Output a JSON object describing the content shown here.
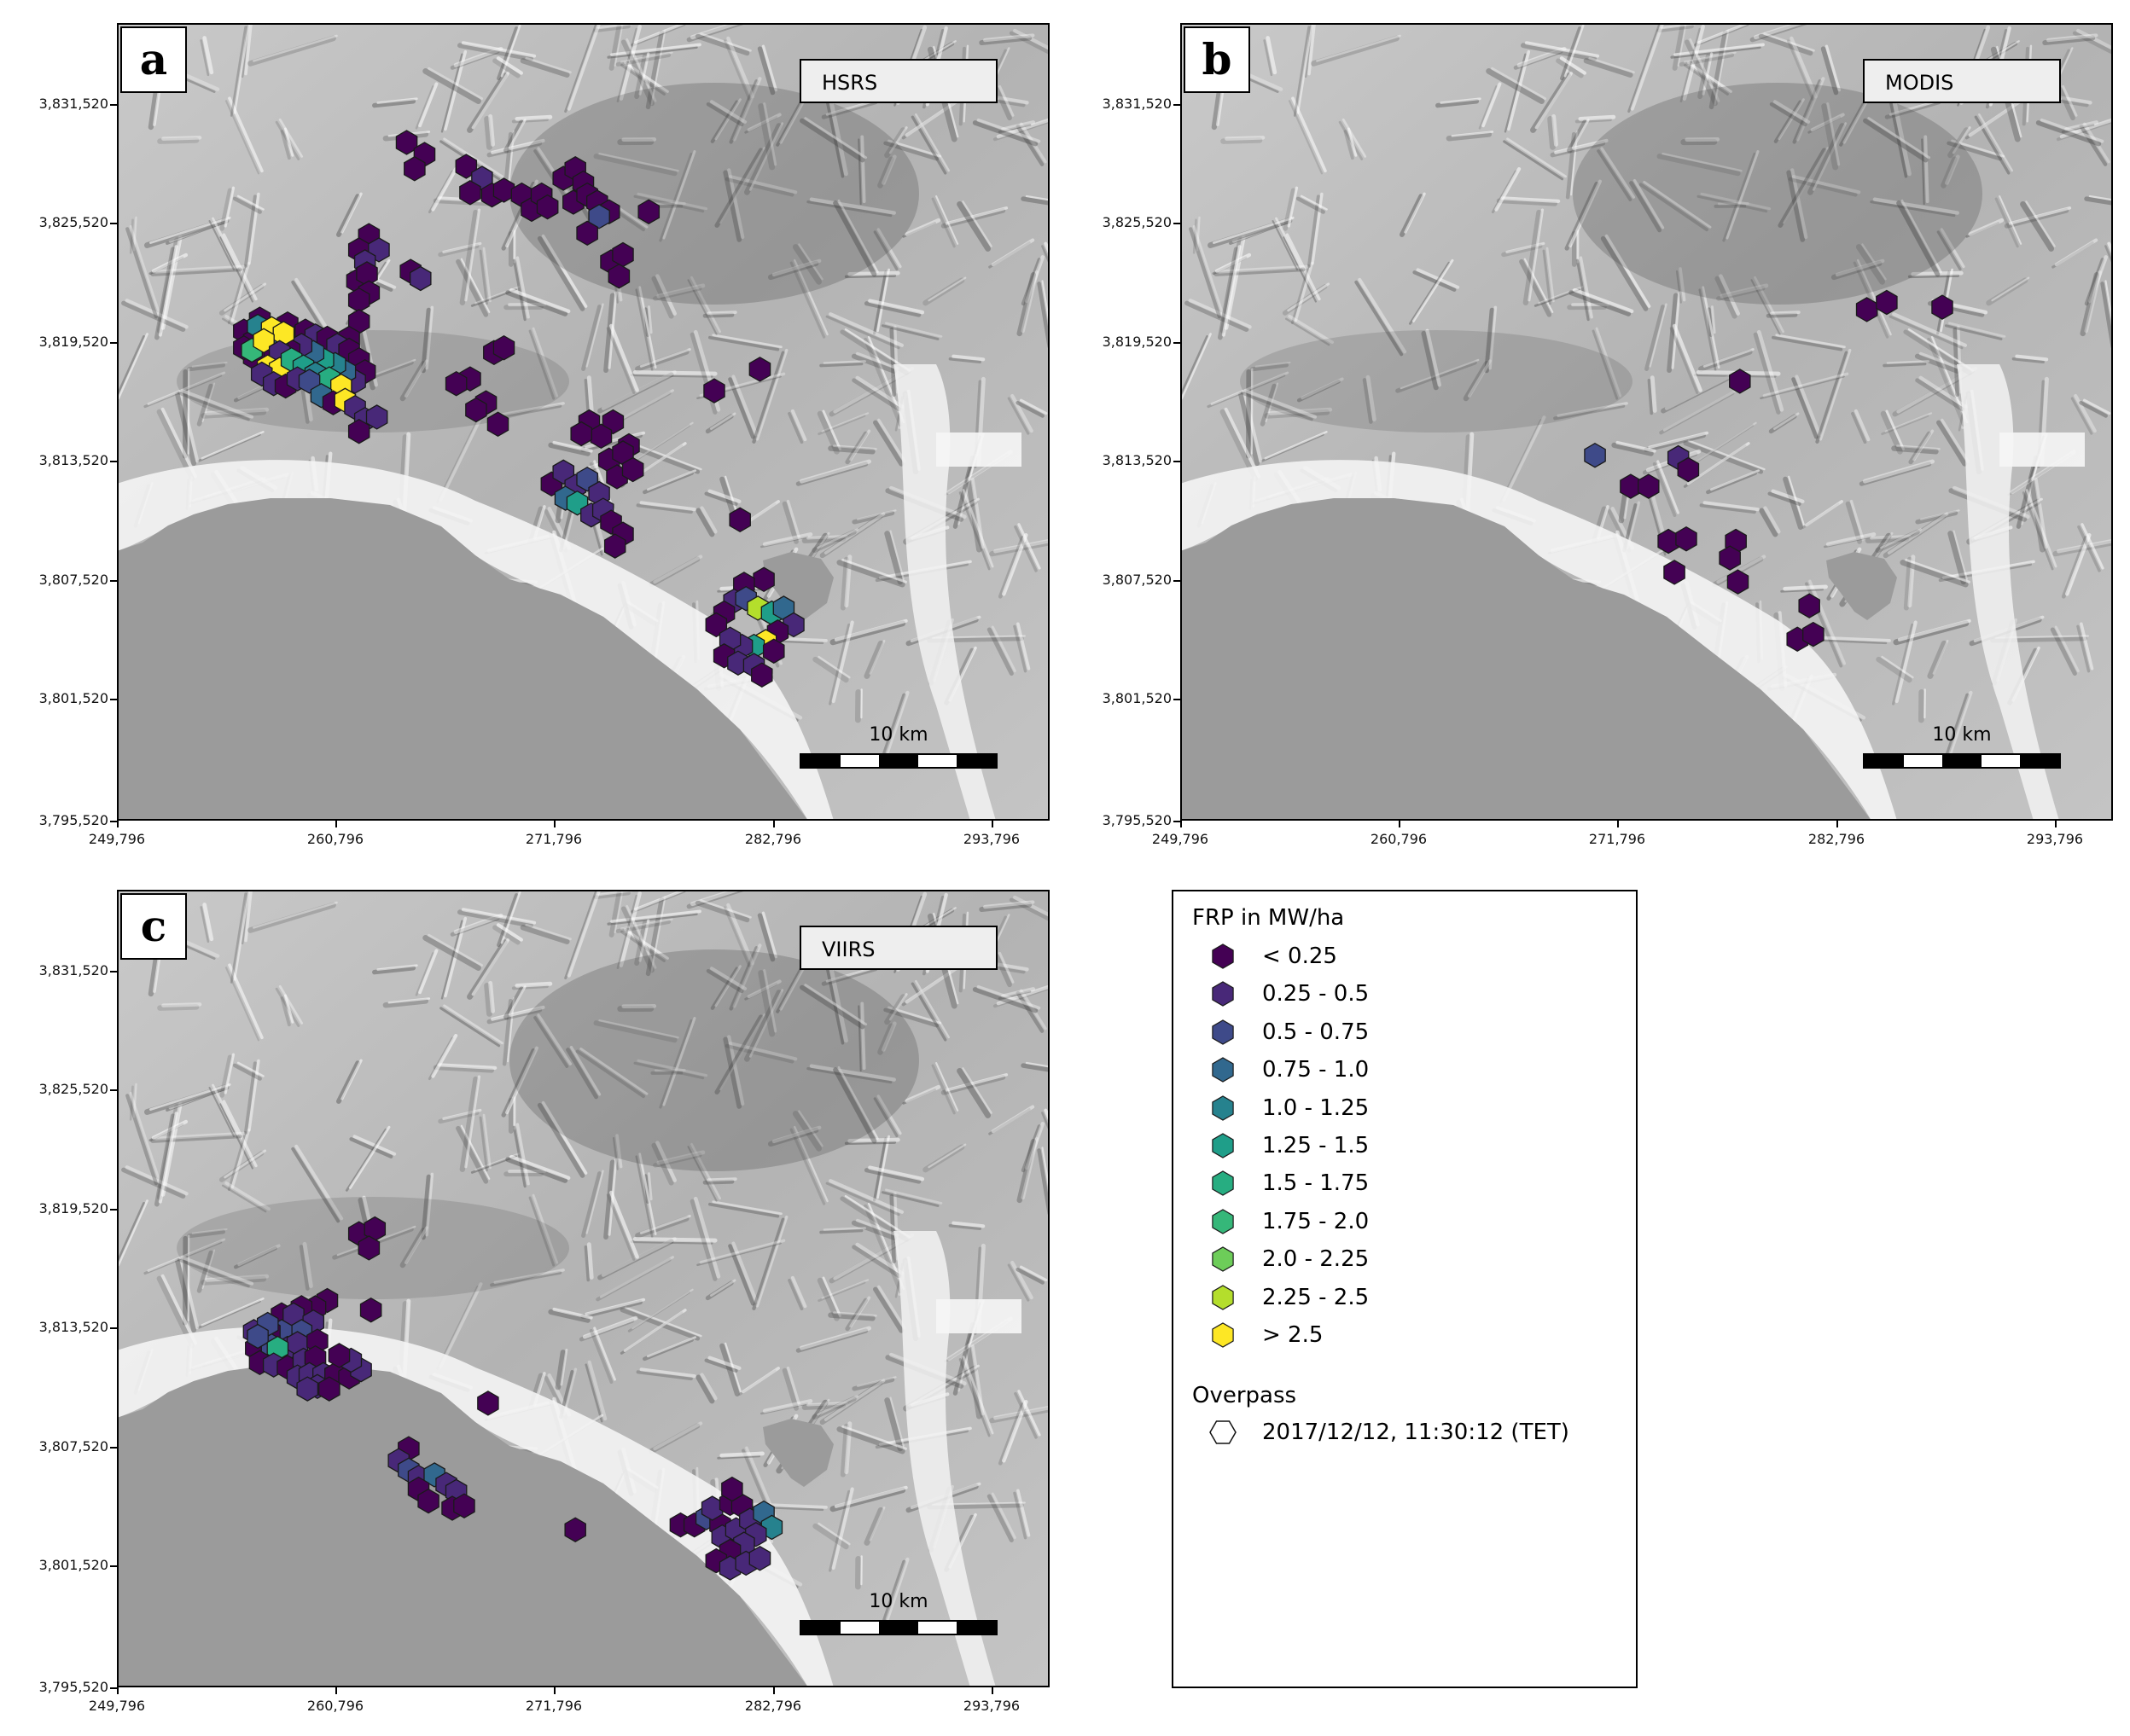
{
  "panels": [
    {
      "label": "a",
      "sensor": "HSRS",
      "hexes": [
        [
          7.3,
          2.5,
          0
        ],
        [
          7.75,
          2.75,
          0
        ],
        [
          7.5,
          3.05,
          0
        ],
        [
          8.8,
          3.0,
          0
        ],
        [
          9.2,
          3.25,
          1
        ],
        [
          8.9,
          3.55,
          0
        ],
        [
          9.45,
          3.6,
          0
        ],
        [
          9.75,
          3.5,
          0
        ],
        [
          10.2,
          3.6,
          0
        ],
        [
          10.45,
          3.9,
          0
        ],
        [
          10.7,
          3.6,
          0
        ],
        [
          10.85,
          3.85,
          0
        ],
        [
          11.25,
          3.25,
          0
        ],
        [
          11.55,
          3.05,
          0
        ],
        [
          11.75,
          3.35,
          0
        ],
        [
          11.5,
          3.75,
          0
        ],
        [
          11.85,
          3.6,
          0
        ],
        [
          12.1,
          3.75,
          0
        ],
        [
          12.4,
          3.95,
          0
        ],
        [
          12.15,
          4.05,
          2
        ],
        [
          11.85,
          4.4,
          0
        ],
        [
          13.4,
          3.95,
          0
        ],
        [
          12.45,
          5.0,
          0
        ],
        [
          12.75,
          4.85,
          0
        ],
        [
          12.65,
          5.3,
          0
        ],
        [
          7.4,
          5.2,
          0
        ],
        [
          7.65,
          5.35,
          1
        ],
        [
          6.35,
          4.45,
          0
        ],
        [
          6.1,
          4.75,
          0
        ],
        [
          6.6,
          4.75,
          1
        ],
        [
          6.25,
          5.0,
          1
        ],
        [
          6.05,
          5.4,
          0
        ],
        [
          6.3,
          5.25,
          0
        ],
        [
          6.35,
          5.65,
          0
        ],
        [
          6.1,
          5.8,
          0
        ],
        [
          6.1,
          6.25,
          0
        ],
        [
          5.85,
          6.6,
          0
        ],
        [
          3.6,
          6.2,
          0
        ],
        [
          3.2,
          6.45,
          0
        ],
        [
          3.45,
          6.65,
          0
        ],
        [
          3.75,
          6.5,
          0
        ],
        [
          4.05,
          6.55,
          1
        ],
        [
          4.3,
          6.3,
          0
        ],
        [
          4.5,
          6.6,
          1
        ],
        [
          4.75,
          6.45,
          0
        ],
        [
          5.0,
          6.55,
          1
        ],
        [
          5.3,
          6.6,
          0
        ],
        [
          5.55,
          6.75,
          1
        ],
        [
          5.85,
          6.85,
          0
        ],
        [
          6.1,
          7.05,
          0
        ],
        [
          6.25,
          7.3,
          0
        ],
        [
          6.0,
          7.5,
          1
        ],
        [
          5.75,
          7.3,
          3
        ],
        [
          5.5,
          7.15,
          4
        ],
        [
          5.2,
          7.05,
          5
        ],
        [
          4.95,
          6.9,
          3
        ],
        [
          4.65,
          6.75,
          1
        ],
        [
          4.35,
          6.85,
          0
        ],
        [
          4.05,
          6.7,
          3
        ],
        [
          3.8,
          6.9,
          0
        ],
        [
          3.45,
          7.0,
          0
        ],
        [
          3.2,
          6.8,
          0
        ],
        [
          3.55,
          6.35,
          4
        ],
        [
          3.9,
          6.4,
          10
        ],
        [
          4.2,
          6.5,
          10
        ],
        [
          3.4,
          6.85,
          7
        ],
        [
          3.7,
          6.65,
          10
        ],
        [
          4.1,
          6.9,
          1
        ],
        [
          3.8,
          7.2,
          10
        ],
        [
          4.1,
          7.25,
          10
        ],
        [
          4.4,
          7.05,
          6
        ],
        [
          4.7,
          7.2,
          5
        ],
        [
          5.0,
          7.35,
          4
        ],
        [
          5.35,
          7.45,
          6
        ],
        [
          5.65,
          7.6,
          10
        ],
        [
          3.65,
          7.35,
          1
        ],
        [
          3.95,
          7.55,
          1
        ],
        [
          4.25,
          7.6,
          0
        ],
        [
          4.55,
          7.45,
          1
        ],
        [
          4.85,
          7.5,
          2
        ],
        [
          5.15,
          7.8,
          3
        ],
        [
          5.45,
          7.95,
          0
        ],
        [
          5.75,
          7.9,
          10
        ],
        [
          6.0,
          8.05,
          1
        ],
        [
          6.25,
          8.3,
          1
        ],
        [
          6.1,
          8.55,
          0
        ],
        [
          6.55,
          8.25,
          1
        ],
        [
          9.5,
          6.9,
          0
        ],
        [
          9.75,
          6.8,
          0
        ],
        [
          8.9,
          7.45,
          0
        ],
        [
          8.55,
          7.55,
          0
        ],
        [
          9.3,
          7.95,
          0
        ],
        [
          9.05,
          8.1,
          0
        ],
        [
          9.6,
          8.4,
          0
        ],
        [
          11.9,
          8.35,
          0
        ],
        [
          12.5,
          8.35,
          0
        ],
        [
          12.2,
          8.65,
          0
        ],
        [
          11.7,
          8.6,
          0
        ],
        [
          12.9,
          8.85,
          0
        ],
        [
          15.05,
          7.7,
          0
        ],
        [
          16.2,
          7.25,
          0
        ],
        [
          12.4,
          9.15,
          0
        ],
        [
          12.75,
          9.0,
          0
        ],
        [
          12.6,
          9.5,
          0
        ],
        [
          13.0,
          9.35,
          0
        ],
        [
          10.95,
          9.65,
          0
        ],
        [
          11.25,
          9.4,
          1
        ],
        [
          11.55,
          9.7,
          1
        ],
        [
          11.85,
          9.55,
          2
        ],
        [
          12.15,
          9.85,
          1
        ],
        [
          11.3,
          9.95,
          3
        ],
        [
          11.6,
          10.05,
          5
        ],
        [
          11.95,
          10.3,
          1
        ],
        [
          12.25,
          10.2,
          1
        ],
        [
          12.45,
          10.45,
          0
        ],
        [
          12.75,
          10.7,
          0
        ],
        [
          12.55,
          10.95,
          0
        ],
        [
          15.7,
          10.4,
          0
        ],
        [
          16.3,
          11.65,
          0
        ],
        [
          15.8,
          11.75,
          0
        ],
        [
          15.55,
          12.1,
          1
        ],
        [
          15.3,
          12.35,
          0
        ],
        [
          15.1,
          12.6,
          0
        ],
        [
          15.85,
          12.05,
          2
        ],
        [
          16.15,
          12.25,
          9
        ],
        [
          16.5,
          12.35,
          5
        ],
        [
          16.8,
          12.25,
          3
        ],
        [
          17.05,
          12.6,
          1
        ],
        [
          16.65,
          12.75,
          0
        ],
        [
          16.35,
          12.95,
          10
        ],
        [
          16.05,
          13.05,
          5
        ],
        [
          15.75,
          13.05,
          1
        ],
        [
          15.45,
          12.9,
          1
        ],
        [
          15.3,
          13.25,
          0
        ],
        [
          15.65,
          13.4,
          1
        ],
        [
          16.05,
          13.45,
          1
        ],
        [
          16.55,
          13.15,
          0
        ],
        [
          16.25,
          13.65,
          0
        ]
      ]
    },
    {
      "label": "b",
      "sensor": "MODIS",
      "hexes": [
        [
          17.3,
          6.0,
          0
        ],
        [
          17.8,
          5.85,
          0
        ],
        [
          19.2,
          5.95,
          0
        ],
        [
          14.1,
          7.5,
          0
        ],
        [
          10.45,
          9.05,
          2
        ],
        [
          12.55,
          9.1,
          1
        ],
        [
          12.8,
          9.35,
          0
        ],
        [
          11.35,
          9.7,
          0
        ],
        [
          11.8,
          9.7,
          0
        ],
        [
          12.3,
          10.85,
          0
        ],
        [
          12.75,
          10.8,
          0
        ],
        [
          12.45,
          11.5,
          0
        ],
        [
          14.0,
          10.85,
          0
        ],
        [
          13.85,
          11.2,
          0
        ],
        [
          14.05,
          11.7,
          0
        ],
        [
          15.85,
          12.2,
          0
        ],
        [
          15.55,
          12.9,
          0
        ],
        [
          15.95,
          12.8,
          0
        ]
      ]
    },
    {
      "label": "c",
      "sensor": "VIIRS",
      "hexes": [
        [
          6.1,
          7.2,
          0
        ],
        [
          6.5,
          7.1,
          0
        ],
        [
          6.35,
          7.5,
          0
        ],
        [
          6.4,
          8.8,
          0
        ],
        [
          5.3,
          8.6,
          0
        ],
        [
          5.0,
          8.75,
          0
        ],
        [
          4.65,
          8.75,
          0
        ],
        [
          4.15,
          8.9,
          0
        ],
        [
          4.45,
          8.9,
          1
        ],
        [
          4.95,
          9.05,
          1
        ],
        [
          4.65,
          9.25,
          2
        ],
        [
          4.15,
          9.25,
          2
        ],
        [
          3.85,
          9.25,
          0
        ],
        [
          3.45,
          9.25,
          1
        ],
        [
          3.8,
          9.1,
          2
        ],
        [
          3.5,
          9.6,
          0
        ],
        [
          3.9,
          9.55,
          2
        ],
        [
          4.3,
          9.6,
          1
        ],
        [
          4.55,
          9.5,
          1
        ],
        [
          5.05,
          9.45,
          0
        ],
        [
          3.55,
          9.35,
          2
        ],
        [
          4.05,
          9.6,
          6
        ],
        [
          3.6,
          9.9,
          0
        ],
        [
          3.95,
          9.95,
          1
        ],
        [
          4.3,
          10.0,
          0
        ],
        [
          4.7,
          9.85,
          1
        ],
        [
          5.0,
          9.8,
          0
        ],
        [
          4.55,
          10.2,
          1
        ],
        [
          4.85,
          10.15,
          1
        ],
        [
          5.2,
          10.15,
          1
        ],
        [
          5.5,
          10.15,
          0
        ],
        [
          5.85,
          10.2,
          0
        ],
        [
          6.15,
          10.05,
          1
        ],
        [
          5.9,
          9.85,
          1
        ],
        [
          5.6,
          9.75,
          0
        ],
        [
          5.05,
          10.4,
          1
        ],
        [
          4.8,
          10.45,
          1
        ],
        [
          5.35,
          10.45,
          0
        ],
        [
          9.35,
          10.75,
          0
        ],
        [
          7.35,
          11.7,
          0
        ],
        [
          7.1,
          11.95,
          1
        ],
        [
          7.35,
          12.15,
          2
        ],
        [
          7.6,
          12.3,
          1
        ],
        [
          8.0,
          12.25,
          3
        ],
        [
          8.3,
          12.45,
          1
        ],
        [
          8.55,
          12.6,
          1
        ],
        [
          7.6,
          12.55,
          0
        ],
        [
          7.85,
          12.8,
          0
        ],
        [
          8.45,
          12.95,
          0
        ],
        [
          8.75,
          12.9,
          0
        ],
        [
          11.55,
          13.4,
          0
        ],
        [
          14.2,
          13.3,
          0
        ],
        [
          14.55,
          13.3,
          0
        ],
        [
          14.85,
          13.15,
          2
        ],
        [
          15.2,
          13.3,
          0
        ],
        [
          15.0,
          12.95,
          1
        ],
        [
          15.45,
          12.85,
          0
        ],
        [
          15.75,
          12.9,
          0
        ],
        [
          15.5,
          12.55,
          0
        ],
        [
          15.25,
          13.55,
          1
        ],
        [
          15.6,
          13.4,
          1
        ],
        [
          15.95,
          13.2,
          1
        ],
        [
          16.3,
          13.05,
          3
        ],
        [
          16.5,
          13.35,
          4
        ],
        [
          16.1,
          13.5,
          1
        ],
        [
          15.8,
          13.7,
          1
        ],
        [
          15.45,
          13.85,
          0
        ],
        [
          15.1,
          14.05,
          0
        ],
        [
          15.45,
          14.2,
          1
        ],
        [
          15.85,
          14.1,
          1
        ],
        [
          16.2,
          14.0,
          1
        ]
      ]
    }
  ],
  "x_ticks": [
    "249,796",
    "260,796",
    "271,796",
    "282,796",
    "293,796"
  ],
  "y_ticks": [
    "3,831,520",
    "3,825,520",
    "3,819,520",
    "3,813,520",
    "3,807,520",
    "3,801,520",
    "3,795,520"
  ],
  "scale_label": "10 km",
  "legend": {
    "title": "FRP in MW/ha",
    "classes": [
      {
        "label": "< 0.25",
        "color": "#440154"
      },
      {
        "label": "0.25 - 0.5",
        "color": "#482878"
      },
      {
        "label": "0.5 - 0.75",
        "color": "#3e4a89"
      },
      {
        "label": "0.75 - 1.0",
        "color": "#31688e"
      },
      {
        "label": "1.0 - 1.25",
        "color": "#26828e"
      },
      {
        "label": "1.25 - 1.5",
        "color": "#1f9e89"
      },
      {
        "label": "1.5 - 1.75",
        "color": "#27ad81"
      },
      {
        "label": "1.75 - 2.0",
        "color": "#35b779"
      },
      {
        "label": "2.0 - 2.25",
        "color": "#6dcd59"
      },
      {
        "label": "2.25 - 2.5",
        "color": "#b4de2c"
      },
      {
        "label": "> 2.5",
        "color": "#fde725"
      }
    ],
    "overpass_title": "Overpass",
    "overpass_label": "2017/12/12, 11:30:12 (TET)"
  },
  "colors": {
    "sea": "#9b9b9b",
    "hex_stroke": "#1a1a1a",
    "terrain_light": "#d2d2d2",
    "terrain_dark": "#5e5e5e"
  }
}
